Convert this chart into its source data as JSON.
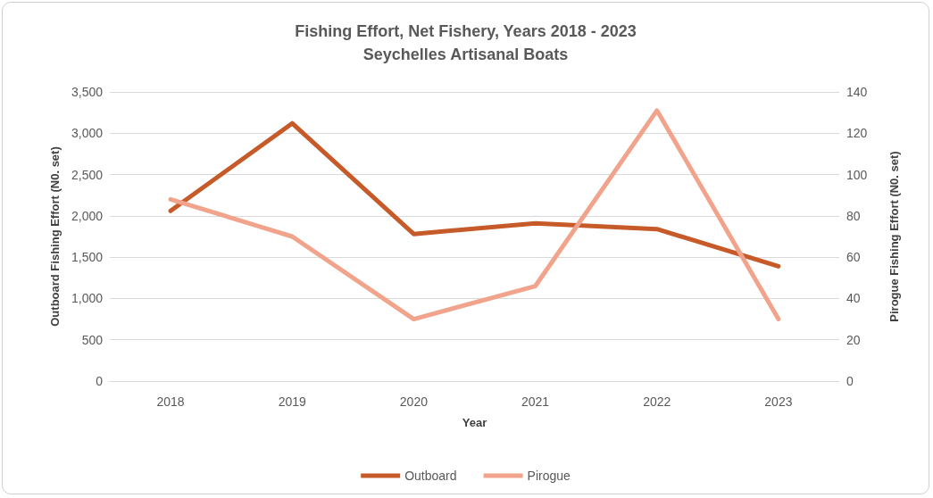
{
  "chart_data": {
    "type": "line",
    "title": "Fishing Effort, Net Fishery, Years 2018 - 2023",
    "subtitle": "Seychelles Artisanal Boats",
    "xlabel": "Year",
    "ylabel": "Outboard Fishing Effort (N0. set)",
    "y2label": "Pirogue Fishing Effort (N0. set)",
    "categories": [
      "2018",
      "2019",
      "2020",
      "2021",
      "2022",
      "2023"
    ],
    "series": [
      {
        "name": "Outboard",
        "color": "#c65a28",
        "values": [
          2060,
          3120,
          1780,
          1910,
          1840,
          1390
        ]
      },
      {
        "name": "Pirogue",
        "color": "#f1a48b",
        "axis": "y2",
        "values": [
          88,
          70,
          30,
          46,
          131,
          30
        ]
      }
    ],
    "ylim": [
      0,
      3500
    ],
    "yticks": [
      0,
      500,
      {
        "value": 1000,
        "label": "1,000"
      },
      {
        "value": 1500,
        "label": "1,500"
      },
      {
        "value": 2000,
        "label": "2,000"
      },
      {
        "value": 2500,
        "label": "2,500"
      },
      {
        "value": 3000,
        "label": "3,000"
      },
      {
        "value": 3500,
        "label": "3,500"
      }
    ],
    "y2lim": [
      0,
      140
    ],
    "y2ticks": [
      0,
      20,
      40,
      60,
      80,
      100,
      120,
      140
    ],
    "grid": "y",
    "legend": "bottom",
    "marker": "none",
    "line_style": "solid"
  }
}
